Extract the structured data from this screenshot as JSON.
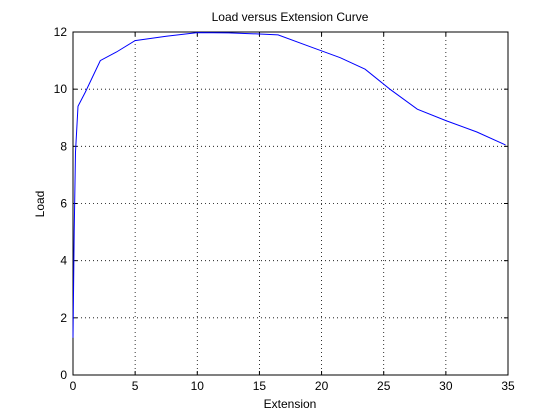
{
  "chart_data": {
    "type": "line",
    "title": "Load versus Extension Curve",
    "xlabel": "Extension",
    "ylabel": "Load",
    "xlim": [
      0,
      35
    ],
    "ylim": [
      0,
      12
    ],
    "xticks": [
      0,
      5,
      10,
      15,
      20,
      25,
      30,
      35
    ],
    "yticks": [
      0,
      2,
      4,
      6,
      8,
      10,
      12
    ],
    "grid": true,
    "series": [
      {
        "color": "#0000ff",
        "x": [
          0.0,
          0.1,
          0.2,
          0.4,
          1.0,
          2.2,
          3.5,
          5.0,
          7.5,
          10.0,
          12.5,
          15.0,
          16.5,
          19.0,
          21.5,
          23.5,
          25.5,
          27.7,
          30.0,
          32.5,
          34.8
        ],
        "y": [
          1.3,
          5.0,
          7.8,
          9.4,
          9.9,
          11.0,
          11.3,
          11.7,
          11.85,
          11.98,
          11.97,
          11.93,
          11.9,
          11.5,
          11.1,
          10.7,
          10.0,
          9.3,
          8.9,
          8.5,
          8.05
        ]
      }
    ]
  }
}
